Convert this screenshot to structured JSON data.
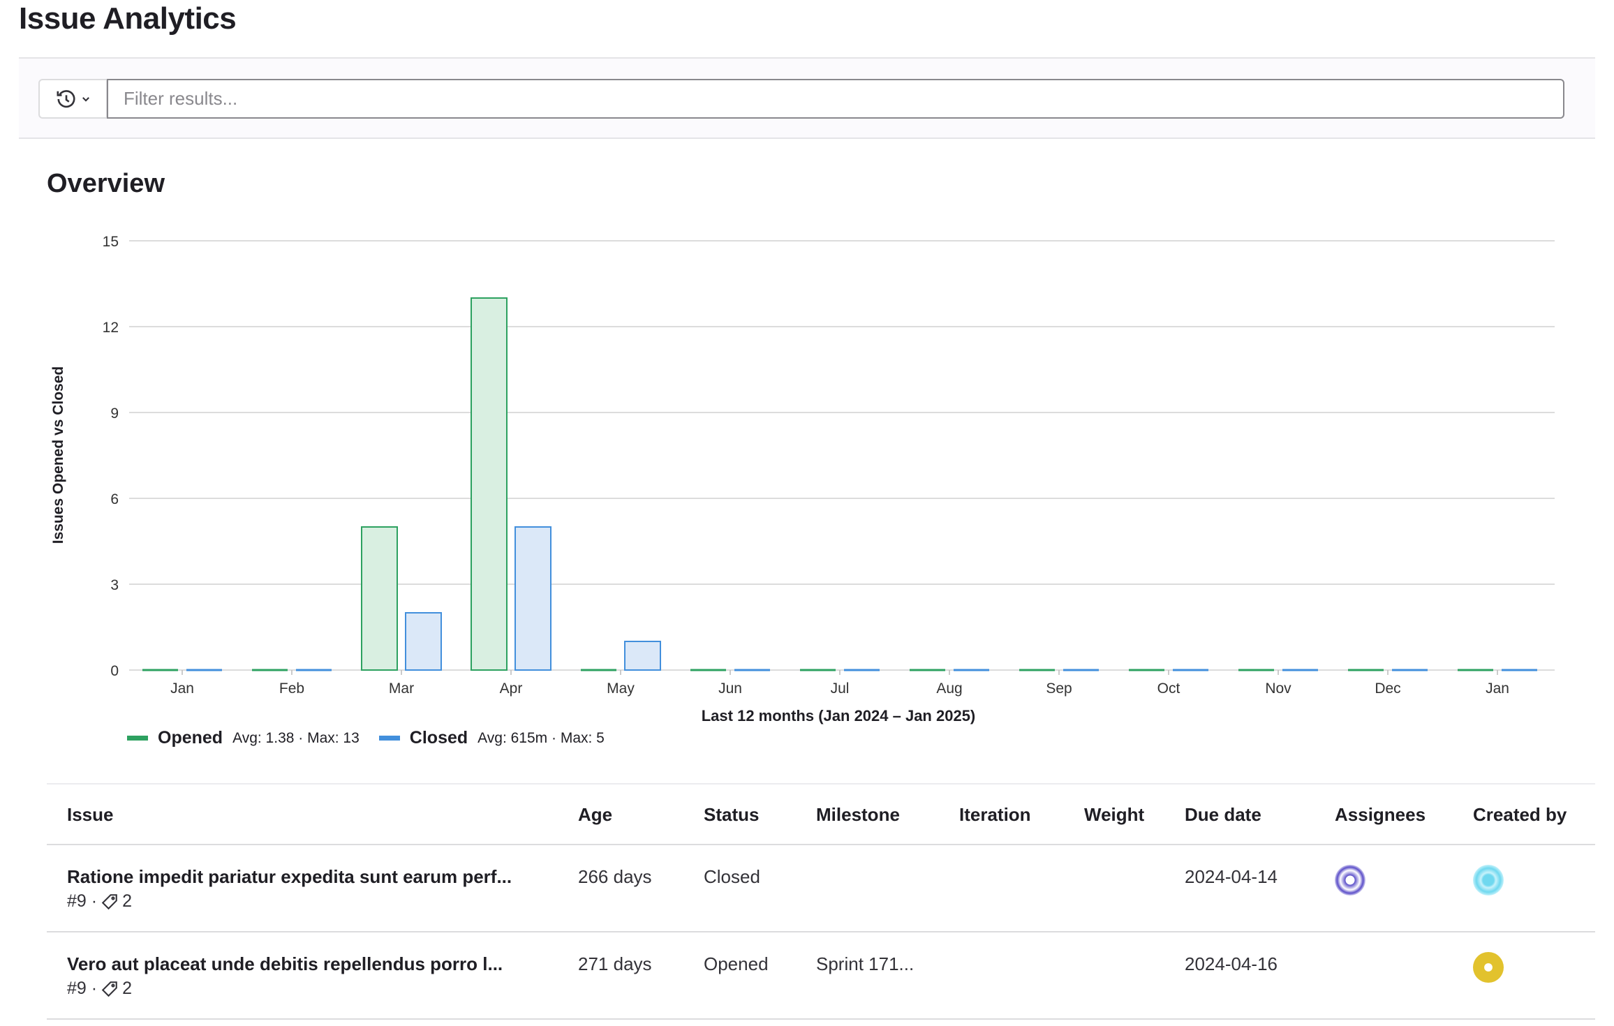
{
  "page": {
    "title": "Issue Analytics"
  },
  "filter": {
    "placeholder": "Filter results...",
    "history_icon": "history-icon"
  },
  "overview": {
    "title": "Overview"
  },
  "chart_data": {
    "type": "bar",
    "categories": [
      "Jan",
      "Feb",
      "Mar",
      "Apr",
      "May",
      "Jun",
      "Jul",
      "Aug",
      "Sep",
      "Oct",
      "Nov",
      "Dec",
      "Jan"
    ],
    "series": [
      {
        "name": "Opened",
        "color": "#2da160",
        "fill": "#d9efe1",
        "values": [
          0,
          0,
          5,
          13,
          0,
          0,
          0,
          0,
          0,
          0,
          0,
          0,
          0
        ]
      },
      {
        "name": "Closed",
        "color": "#428fdc",
        "fill": "#dbe8f8",
        "values": [
          0,
          0,
          2,
          5,
          1,
          0,
          0,
          0,
          0,
          0,
          0,
          0,
          0
        ]
      }
    ],
    "xlabel": "Last 12 months (Jan 2024 – Jan 2025)",
    "ylabel": "Issues Opened vs Closed",
    "ylim": [
      0,
      15
    ],
    "yticks": [
      0,
      3,
      6,
      9,
      12,
      15
    ],
    "grid": true,
    "legend_placement": "bottom-left"
  },
  "legend": [
    {
      "name": "Opened",
      "stats": "Avg: 1.38 · Max: 13",
      "color": "#2da160"
    },
    {
      "name": "Closed",
      "stats": "Avg: 615m · Max: 5",
      "color": "#428fdc"
    }
  ],
  "table": {
    "headers": [
      "Issue",
      "Age",
      "Status",
      "Milestone",
      "Iteration",
      "Weight",
      "Due date",
      "Assignees",
      "Created by"
    ],
    "rows": [
      {
        "title": "Ratione impedit pariatur expedita sunt earum perf...",
        "meta": "#9 ·",
        "labels": "2",
        "age": "266 days",
        "status": "Closed",
        "milestone": "",
        "iteration": "",
        "weight": "",
        "due": "2024-04-14",
        "assignee_color": "#5c4fc9",
        "creator_color": "#6fd8ef"
      },
      {
        "title": "Vero aut placeat unde debitis repellendus porro l...",
        "meta": "#9 ·",
        "labels": "2",
        "age": "271 days",
        "status": "Opened",
        "milestone": "Sprint 171...",
        "iteration": "",
        "weight": "",
        "due": "2024-04-16",
        "assignee_color": "",
        "creator_color": "#e2c22d"
      }
    ]
  }
}
